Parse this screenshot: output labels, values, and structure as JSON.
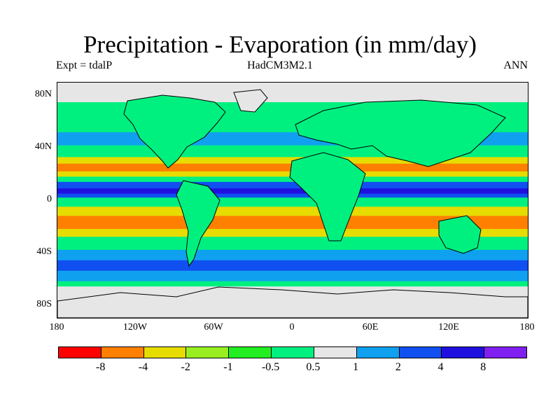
{
  "title": "Precipitation - Evaporation (in mm/day)",
  "subtitle_left": "Expt = tdalP",
  "subtitle_center": "HadCM3M2.1",
  "subtitle_right": "ANN",
  "lat_ticks": [
    "80N",
    "40N",
    "0",
    "40S",
    "80S"
  ],
  "lon_ticks": [
    "180",
    "120W",
    "60W",
    "0",
    "60E",
    "120E",
    "180"
  ],
  "colorbar": {
    "colors": [
      "#ff0000",
      "#ff8000",
      "#e6dc00",
      "#99ee22",
      "#22ee22",
      "#00f080",
      "#e6e6e6",
      "#10a0f0",
      "#1050f0",
      "#2010e0",
      "#8020f0"
    ],
    "labels": [
      "-8",
      "-4",
      "-2",
      "-1",
      "-0.5",
      "0.5",
      "1",
      "2",
      "4",
      "8"
    ]
  },
  "map": {
    "background_color": "#00f080",
    "bands": [
      {
        "lat": [
          90,
          75
        ],
        "color": "#e6e6e6"
      },
      {
        "lat": [
          52,
          42
        ],
        "color": "#10a0f0"
      },
      {
        "lat": [
          33,
          18
        ],
        "color": "#e6dc00"
      },
      {
        "lat": [
          28,
          22
        ],
        "color": "#ff8000"
      },
      {
        "lat": [
          14,
          2
        ],
        "color": "#1050f0"
      },
      {
        "lat": [
          9,
          5
        ],
        "color": "#2010e0"
      },
      {
        "lat": [
          -5,
          -28
        ],
        "color": "#e6dc00"
      },
      {
        "lat": [
          -12,
          -22
        ],
        "color": "#ff8000"
      },
      {
        "lat": [
          -38,
          -62
        ],
        "color": "#10a0f0"
      },
      {
        "lat": [
          -46,
          -54
        ],
        "color": "#1050f0"
      },
      {
        "lat": [
          -66,
          -90
        ],
        "color": "#e6e6e6"
      }
    ]
  }
}
